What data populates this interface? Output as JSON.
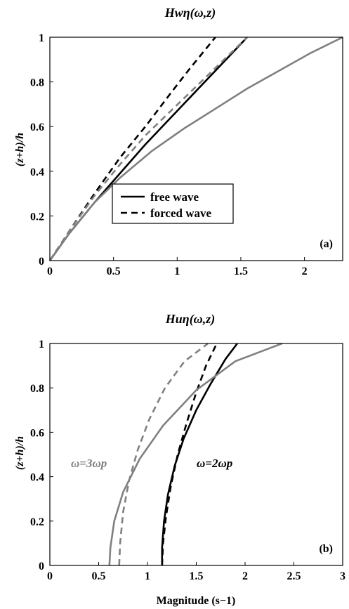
{
  "chart_data": [
    {
      "type": "line",
      "title": "Hwη(ω,z)",
      "panel_label": "(a)",
      "xlabel": "",
      "ylabel": "(z+h)/h",
      "xlim": [
        0,
        2.3
      ],
      "ylim": [
        0,
        1
      ],
      "xticks": [
        "0",
        "0.5",
        "1",
        "1.5",
        "2"
      ],
      "yticks": [
        "0",
        "0.2",
        "0.4",
        "0.6",
        "0.8",
        "1"
      ],
      "legend": {
        "placement": "center",
        "entries": [
          {
            "name": "free wave",
            "style": "solid"
          },
          {
            "name": "forced wave",
            "style": "dashed"
          }
        ]
      },
      "series": [
        {
          "color": "#000000",
          "style": "solid",
          "x": [
            0,
            0.15,
            0.35,
            0.55,
            0.75,
            0.95,
            1.15,
            1.35,
            1.55
          ],
          "y": [
            0,
            0.12,
            0.26,
            0.39,
            0.52,
            0.64,
            0.76,
            0.88,
            1.0
          ]
        },
        {
          "color": "#000000",
          "style": "dashed",
          "x": [
            0,
            0.15,
            0.35,
            0.55,
            0.75,
            0.95,
            1.1,
            1.3
          ],
          "y": [
            0,
            0.13,
            0.3,
            0.46,
            0.6,
            0.75,
            0.86,
            1.0
          ]
        },
        {
          "color": "#808080",
          "style": "solid",
          "x": [
            0,
            0.15,
            0.35,
            0.55,
            0.8,
            1.05,
            1.3,
            1.55,
            1.8,
            2.05,
            2.3
          ],
          "y": [
            0,
            0.12,
            0.26,
            0.37,
            0.49,
            0.59,
            0.68,
            0.77,
            0.85,
            0.93,
            1.0
          ]
        },
        {
          "color": "#808080",
          "style": "dashed",
          "x": [
            0,
            0.15,
            0.35,
            0.55,
            0.75,
            0.95,
            1.15,
            1.35,
            1.55
          ],
          "y": [
            0,
            0.13,
            0.29,
            0.43,
            0.56,
            0.67,
            0.78,
            0.89,
            1.0
          ]
        }
      ]
    },
    {
      "type": "line",
      "title": "Huη(ω,z)",
      "panel_label": "(b)",
      "xlabel": "Magnitude (s−1)",
      "ylabel": "(z+h)/h",
      "xlim": [
        0,
        3
      ],
      "ylim": [
        0,
        1
      ],
      "xticks": [
        "0",
        "0.5",
        "1",
        "1.5",
        "2",
        "2.5",
        "3"
      ],
      "yticks": [
        "0",
        "0.2",
        "0.4",
        "0.6",
        "0.8",
        "1"
      ],
      "annotations": [
        {
          "text": "ω=3ωp",
          "color": "#808080",
          "x": 0.25,
          "y": 0.44
        },
        {
          "text": "ω=2ωp",
          "color": "#000000",
          "x": 1.5,
          "y": 0.44
        }
      ],
      "series": [
        {
          "color": "#000000",
          "style": "solid",
          "x": [
            1.15,
            1.15,
            1.17,
            1.21,
            1.28,
            1.37,
            1.5,
            1.65,
            1.8,
            1.92
          ],
          "y": [
            0,
            0.08,
            0.2,
            0.32,
            0.45,
            0.57,
            0.7,
            0.82,
            0.93,
            1.0
          ]
        },
        {
          "color": "#000000",
          "style": "dashed",
          "x": [
            1.15,
            1.16,
            1.19,
            1.24,
            1.31,
            1.4,
            1.5,
            1.6,
            1.71
          ],
          "y": [
            0,
            0.1,
            0.22,
            0.36,
            0.5,
            0.64,
            0.78,
            0.9,
            1.0
          ]
        },
        {
          "color": "#808080",
          "style": "solid",
          "x": [
            0.61,
            0.62,
            0.66,
            0.75,
            0.92,
            1.16,
            1.5,
            1.9,
            2.38
          ],
          "y": [
            0,
            0.08,
            0.2,
            0.33,
            0.48,
            0.63,
            0.79,
            0.92,
            1.0
          ]
        },
        {
          "color": "#808080",
          "style": "dashed",
          "x": [
            0.71,
            0.72,
            0.75,
            0.81,
            0.9,
            1.02,
            1.18,
            1.38,
            1.62
          ],
          "y": [
            0,
            0.1,
            0.24,
            0.38,
            0.52,
            0.66,
            0.8,
            0.92,
            1.0
          ]
        }
      ]
    }
  ]
}
